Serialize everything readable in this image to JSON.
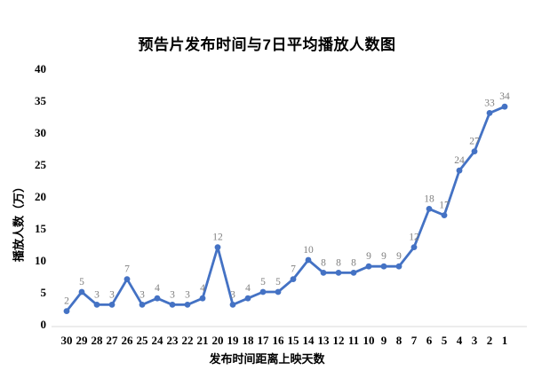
{
  "page": {
    "background": "#ffffff"
  },
  "chart_data": {
    "type": "line",
    "title": "预告片发布时间与7日平均播放人数图",
    "xlabel": "发布时间距离上映天数",
    "ylabel": "播放人数（万）",
    "categories": [
      30,
      29,
      28,
      27,
      26,
      25,
      24,
      23,
      22,
      21,
      20,
      19,
      18,
      17,
      16,
      15,
      14,
      13,
      12,
      11,
      10,
      9,
      8,
      7,
      6,
      5,
      4,
      3,
      2,
      1
    ],
    "values": [
      2,
      5,
      3,
      3,
      7,
      3,
      4,
      3,
      3,
      4,
      12,
      3,
      4,
      5,
      5,
      7,
      10,
      8,
      8,
      8,
      9,
      9,
      9,
      12,
      18,
      17,
      24,
      27,
      33,
      34
    ],
    "ylim": [
      0,
      40
    ],
    "yticks": [
      0,
      5,
      10,
      15,
      20,
      25,
      30,
      35,
      40
    ],
    "grid": false,
    "legend": "none",
    "line_color": "#4472C4",
    "marker": "circle",
    "data_label_color": "#7f7f7f",
    "axis_line_color": "#d9d9d9",
    "text_color": "#000000"
  }
}
